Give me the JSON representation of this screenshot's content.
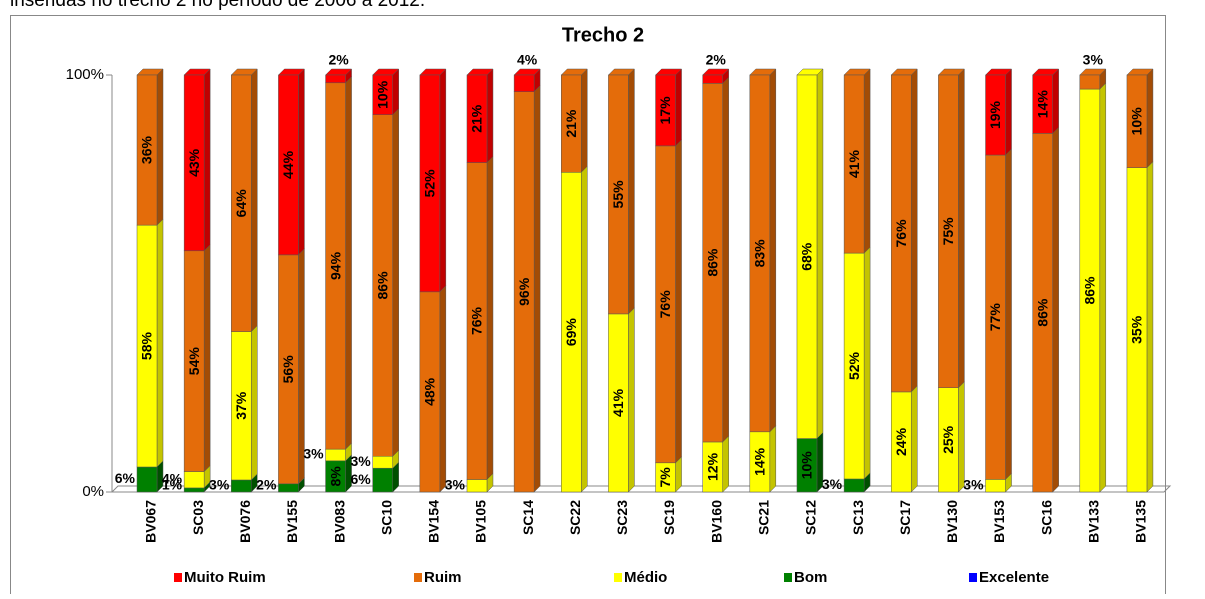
{
  "caption": "inseridas no trecho 2 no período de 2006 a 2012.",
  "chart_data": {
    "type": "stacked100",
    "title": "Trecho 2",
    "categories": [
      "BV067",
      "SC03",
      "BV076",
      "BV155",
      "BV083",
      "SC10",
      "BV154",
      "BV105",
      "SC14",
      "SC22",
      "SC23",
      "SC19",
      "BV160",
      "SC21",
      "SC12",
      "SC13",
      "SC17",
      "BV130",
      "BV153",
      "SC16",
      "BV133",
      "BV135"
    ],
    "ylim": [
      0,
      100
    ],
    "yticks": [
      {
        "value": 0,
        "label": "0%"
      },
      {
        "value": 100,
        "label": "100%"
      }
    ],
    "series": [
      {
        "name": "Muito Ruim",
        "color": "#ff0000",
        "side": "#c00000",
        "values": [
          null,
          43,
          null,
          44,
          2,
          10,
          52,
          21,
          4,
          null,
          null,
          17,
          2,
          null,
          null,
          null,
          null,
          null,
          19,
          14,
          null,
          null
        ],
        "value_labels": [
          null,
          "43%",
          null,
          "44%",
          "2%",
          "10%",
          "52%",
          "21%",
          "4%",
          null,
          null,
          "17%",
          "2%",
          null,
          null,
          null,
          null,
          null,
          "19%",
          "14%",
          null,
          null
        ]
      },
      {
        "name": "Ruim",
        "color": "#e46c0a",
        "side": "#a34c05",
        "values": [
          36,
          54,
          64,
          56,
          94,
          86,
          48,
          76,
          96,
          21,
          55,
          76,
          86,
          83,
          null,
          41,
          76,
          75,
          77,
          86,
          3,
          10
        ],
        "value_labels": [
          "36%",
          "54%",
          "64%",
          "56%",
          "94%",
          "86%",
          "48%",
          "76%",
          "96%",
          "21%",
          "55%",
          "76%",
          "86%",
          "83%",
          null,
          "41%",
          "76%",
          "75%",
          "77%",
          "86%",
          "3%",
          "10%"
        ]
      },
      {
        "name": "Médio",
        "color": "#ffff00",
        "side": "#c4c400",
        "values": [
          58,
          4,
          37,
          null,
          3,
          3,
          null,
          3,
          null,
          69,
          41,
          7,
          12,
          14,
          68,
          52,
          24,
          25,
          3,
          null,
          86,
          35
        ],
        "value_labels": [
          "58%",
          "4%",
          "37%",
          null,
          "3%",
          "3%",
          null,
          "3%",
          null,
          "69%",
          "41%",
          "7%",
          "12%",
          "14%",
          "68%",
          "52%",
          "24%",
          "25%",
          "3%",
          null,
          "86%",
          "35%"
        ]
      },
      {
        "name": "Bom",
        "color": "#008000",
        "side": "#005000",
        "values": [
          6,
          1,
          3,
          2,
          8,
          6,
          null,
          null,
          null,
          null,
          null,
          null,
          null,
          null,
          10,
          3,
          null,
          null,
          null,
          null,
          null,
          null
        ],
        "value_labels": [
          "6%",
          "1%",
          "3%",
          "2%",
          "8%",
          "6%",
          null,
          null,
          null,
          null,
          null,
          null,
          null,
          null,
          "10%",
          "3%",
          null,
          null,
          null,
          null,
          null,
          null
        ]
      },
      {
        "name": "Excelente",
        "color": "#0000ff",
        "side": "#0000a0",
        "values": [
          null,
          null,
          null,
          null,
          null,
          null,
          null,
          null,
          null,
          null,
          null,
          null,
          null,
          null,
          null,
          null,
          null,
          null,
          null,
          null,
          null,
          null
        ],
        "value_labels": [
          null,
          null,
          null,
          null,
          null,
          null,
          null,
          null,
          null,
          null,
          null,
          null,
          null,
          null,
          null,
          null,
          null,
          null,
          null,
          null,
          null,
          null
        ]
      }
    ]
  }
}
